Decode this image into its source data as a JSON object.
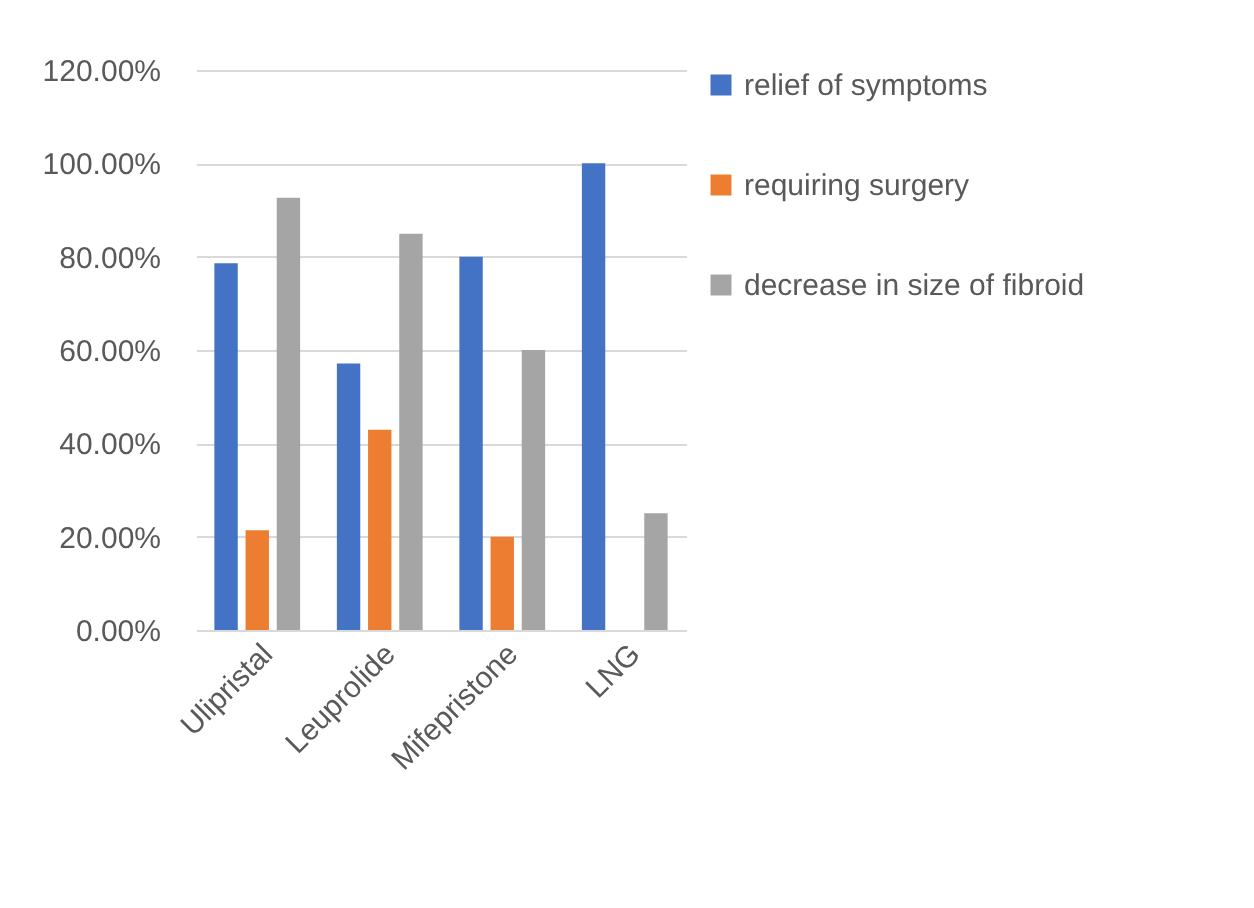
{
  "chart_data": {
    "type": "bar",
    "categories": [
      "Ulipristal",
      "Leuprolide",
      "Mifepristone",
      "LNG"
    ],
    "series": [
      {
        "name": "relief of symptoms",
        "color": "#4472c4",
        "values": [
          78.6,
          57.1,
          80,
          100
        ]
      },
      {
        "name": "requiring surgery",
        "color": "#ed7d31",
        "values": [
          21.4,
          42.9,
          20,
          0
        ]
      },
      {
        "name": "decrease in size of fibroid",
        "color": "#a5a5a5",
        "values": [
          92.6,
          84.9,
          60,
          25
        ]
      }
    ],
    "ylim": [
      0,
      120
    ],
    "yticks": [
      {
        "value": 0,
        "label": "0.00%"
      },
      {
        "value": 20,
        "label": "20.00%"
      },
      {
        "value": 40,
        "label": "40.00%"
      },
      {
        "value": 60,
        "label": "60.00%"
      },
      {
        "value": 80,
        "label": "80.00%"
      },
      {
        "value": 100,
        "label": "100.00%"
      },
      {
        "value": 120,
        "label": "120.00%"
      }
    ],
    "grid": "y",
    "legend": "right"
  }
}
